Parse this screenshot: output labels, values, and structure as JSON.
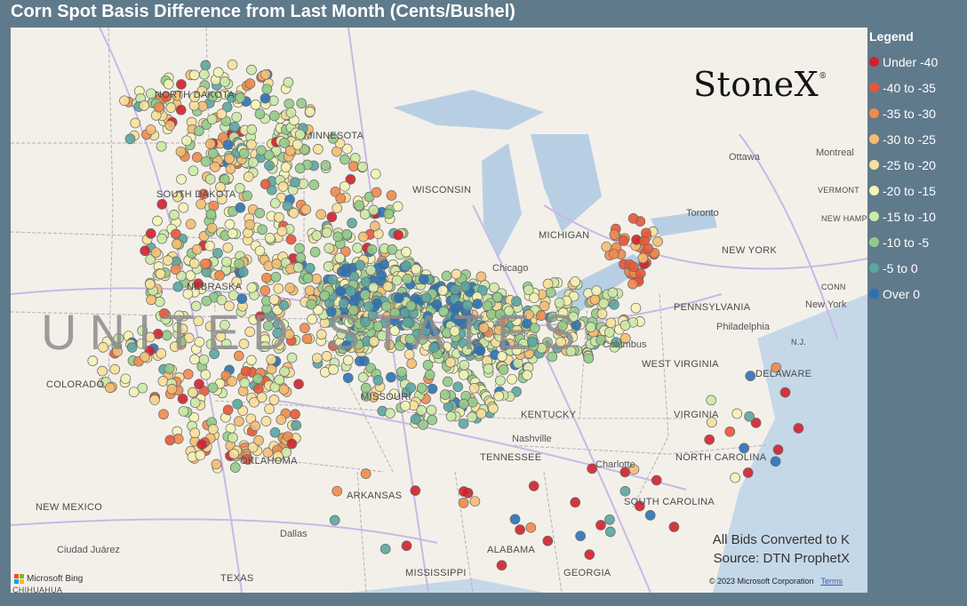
{
  "title": "Corn Spot Basis Difference from Last Month (Cents/Bushel)",
  "legend": {
    "title": "Legend",
    "items": [
      {
        "label": "Under -40",
        "color": "#d0212c"
      },
      {
        "label": "-40 to -35",
        "color": "#e8563a"
      },
      {
        "label": "-35 to -30",
        "color": "#f08a4b"
      },
      {
        "label": "-30 to -25",
        "color": "#f5bd72"
      },
      {
        "label": "-25 to -20",
        "color": "#f7e09a"
      },
      {
        "label": "-20 to -15",
        "color": "#f4f3b6"
      },
      {
        "label": "-15 to -10",
        "color": "#cde9a6"
      },
      {
        "label": "-10 to -5",
        "color": "#94cb8a"
      },
      {
        "label": "-5 to 0",
        "color": "#5aa6a2"
      },
      {
        "label": "Over 0",
        "color": "#2b72b5"
      }
    ]
  },
  "brand": {
    "name": "StoneX",
    "mark": "®"
  },
  "note": {
    "line1": "All Bids Converted to K",
    "line2": "Source: DTN ProphetX"
  },
  "attribution": {
    "provider": "Microsoft Bing",
    "copyright": "© 2023 Microsoft Corporation",
    "terms": "Terms"
  },
  "map_labels": {
    "country": "UNITED STATES",
    "states": [
      "NORTH DAKOTA",
      "SOUTH DAKOTA",
      "MINNESOTA",
      "WISCONSIN",
      "MICHIGAN",
      "NEBRASKA",
      "COLORADO",
      "MISSOURI",
      "KENTUCKY",
      "WEST VIRGINIA",
      "VIRGINIA",
      "TENNESSEE",
      "NORTH CAROLINA",
      "SOUTH CAROLINA",
      "OKLAHOMA",
      "ARKANSAS",
      "NEW MEXICO",
      "TEXAS",
      "MISSISSIPPI",
      "ALABAMA",
      "GEORGIA",
      "NEW YORK",
      "PENNSYLVANIA",
      "DELAWARE",
      "VERMONT",
      "NEW HAMPSH",
      "CONN",
      "N.J.",
      "CHIHUAHUA"
    ],
    "cities": [
      "Ottawa",
      "Montreal",
      "Toronto",
      "Chicago",
      "Columbus",
      "Nashville",
      "Charlotte",
      "Philadelphia",
      "New York",
      "Dallas",
      "Ciudad Juárez"
    ]
  }
}
